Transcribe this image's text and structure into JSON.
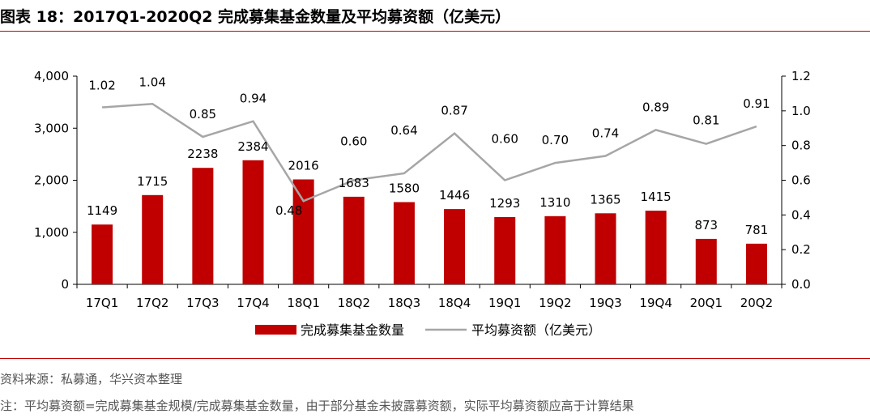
{
  "title": "图表 18：2017Q1-2020Q2 完成募集基金数量及平均募资额（亿美元）",
  "source": "资料来源：私募通，华兴资本整理",
  "remark": "注：平均募资额=完成募集基金规模/完成募集基金数量，由于部分基金未披露募资额，实际平均募资额应高于计算结果",
  "colors": {
    "bar": "#c00000",
    "line": "#a6a6a6",
    "rule": "#c00000"
  },
  "chart_data": {
    "type": "bar",
    "categories": [
      "17Q1",
      "17Q2",
      "17Q3",
      "17Q4",
      "18Q1",
      "18Q2",
      "18Q3",
      "18Q4",
      "19Q1",
      "19Q2",
      "19Q3",
      "19Q4",
      "20Q1",
      "20Q2"
    ],
    "series": [
      {
        "name": "完成募集基金数量",
        "type": "bar",
        "axis": "left",
        "values": [
          1149,
          1715,
          2238,
          2384,
          2016,
          1683,
          1580,
          1446,
          1293,
          1310,
          1365,
          1415,
          873,
          781
        ],
        "labels": [
          "1149",
          "1715",
          "2238",
          "2384",
          "2016",
          "1683",
          "1580",
          "1446",
          "1293",
          "1310",
          "1365",
          "1415",
          "873",
          "781"
        ]
      },
      {
        "name": "平均募资额（亿美元）",
        "type": "line",
        "axis": "right",
        "values": [
          1.02,
          1.04,
          0.85,
          0.94,
          0.48,
          0.6,
          0.64,
          0.87,
          0.6,
          0.7,
          0.74,
          0.89,
          0.81,
          0.91
        ],
        "labels": [
          "1.02",
          "1.04",
          "0.85",
          "0.94",
          "0.48",
          "0.60",
          "0.64",
          "0.87",
          "0.60",
          "0.70",
          "0.74",
          "0.89",
          "0.81",
          "0.91"
        ]
      }
    ],
    "y_left": {
      "min": 0,
      "max": 4000,
      "ticks": [
        "0",
        "1,000",
        "2,000",
        "3,000",
        "4,000"
      ]
    },
    "y_right": {
      "min": 0,
      "max": 1.2,
      "ticks": [
        "0.0",
        "0.2",
        "0.4",
        "0.6",
        "0.8",
        "1.0",
        "1.2"
      ]
    },
    "grid": false,
    "legend_position": "bottom"
  }
}
